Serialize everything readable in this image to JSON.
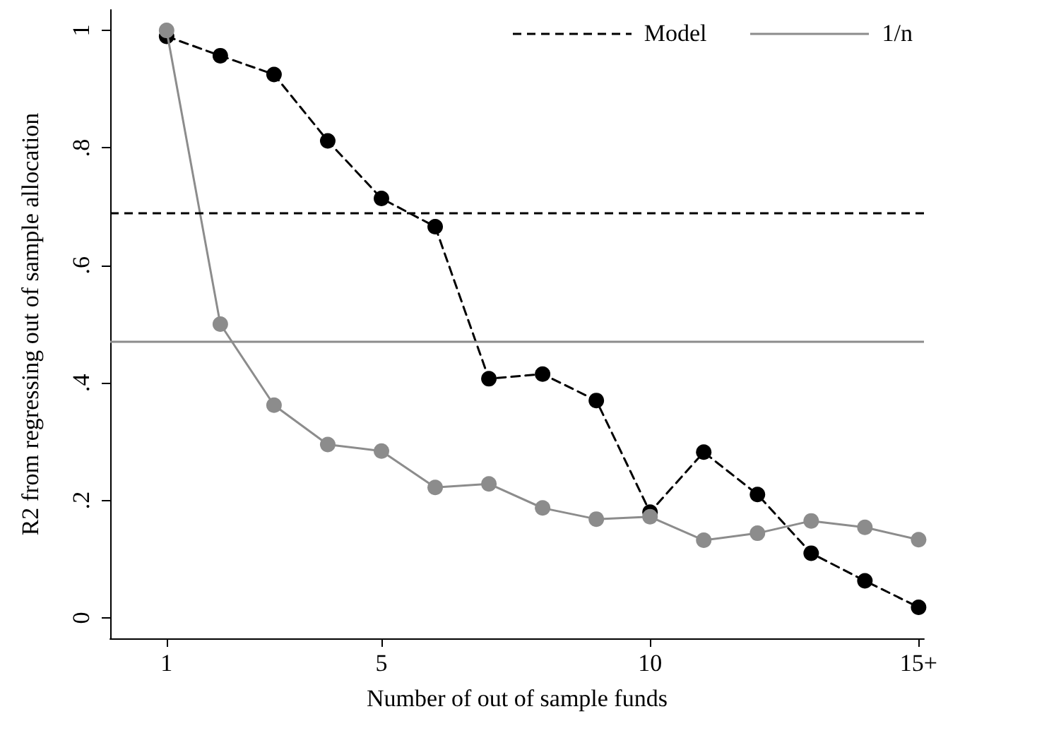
{
  "chart_data": {
    "type": "line",
    "xlabel": "Number of out of sample funds",
    "ylabel": "R2 from regressing out of sample allocation",
    "x": [
      1,
      2,
      3,
      4,
      5,
      6,
      7,
      8,
      9,
      10,
      11,
      12,
      13,
      14,
      15
    ],
    "series": [
      {
        "name": "Model",
        "color": "#000000",
        "line_style": "dashed",
        "values": [
          0.99,
          0.957,
          0.925,
          0.812,
          0.714,
          0.666,
          0.407,
          0.415,
          0.37,
          0.18,
          0.282,
          0.21,
          0.11,
          0.063,
          0.018
        ]
      },
      {
        "name": "1/n",
        "color": "#8c8c8c",
        "line_style": "solid",
        "values": [
          1.0,
          0.5,
          0.362,
          0.295,
          0.284,
          0.222,
          0.228,
          0.187,
          0.168,
          0.172,
          0.132,
          0.144,
          0.165,
          0.154,
          0.133
        ]
      }
    ],
    "xlim": [
      -0.05,
      15.1
    ],
    "xticks": [
      1,
      5,
      10,
      {
        "value": 15,
        "label": "15+"
      }
    ],
    "ylim": [
      -0.035,
      1.035
    ],
    "yticks": [
      0,
      {
        "value": 0.2,
        "label": ".2"
      },
      {
        "value": 0.4,
        "label": ".4"
      },
      {
        "value": 0.6,
        "label": ".6"
      },
      {
        "value": 0.8,
        "label": ".8"
      },
      1
    ],
    "ref_lines": [
      {
        "axis": "y",
        "value": 0.691,
        "color": "#000000",
        "line_style": "dashed"
      },
      {
        "axis": "y",
        "value": 0.468,
        "color": "#8c8c8c",
        "line_style": "solid"
      }
    ],
    "marker": "circle",
    "grid": false,
    "legend": "top right"
  }
}
